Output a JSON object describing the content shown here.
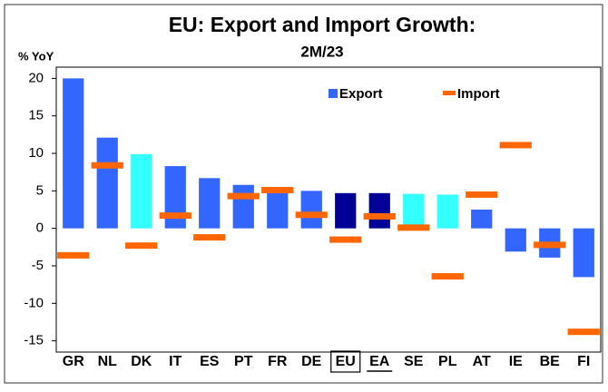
{
  "chart_data": {
    "type": "bar",
    "title": "EU: Export and Import Growth:",
    "subtitle": "2M/23",
    "y_label": "% YoY",
    "categories": [
      "GR",
      "NL",
      "DK",
      "IT",
      "ES",
      "PT",
      "FR",
      "DE",
      "EU",
      "EA",
      "SE",
      "PL",
      "AT",
      "IE",
      "BE",
      "FI"
    ],
    "series": [
      {
        "name": "Export",
        "type": "bar",
        "color": "#3366ff",
        "colors": [
          "#3366ff",
          "#3366ff",
          "#33ffff",
          "#3366ff",
          "#3366ff",
          "#3366ff",
          "#3366ff",
          "#3366ff",
          "#000099",
          "#000099",
          "#33ffff",
          "#33ffff",
          "#3366ff",
          "#3366ff",
          "#3366ff",
          "#3366ff"
        ],
        "values": [
          20,
          12.1,
          9.9,
          8.3,
          6.7,
          5.8,
          5.0,
          5.0,
          4.7,
          4.7,
          4.6,
          4.5,
          2.5,
          -3.1,
          -3.9,
          -6.5
        ]
      },
      {
        "name": "Import",
        "type": "dash",
        "color": "#ff6600",
        "values": [
          -3.6,
          8.4,
          -2.3,
          1.7,
          -1.2,
          4.3,
          5.1,
          1.8,
          -1.5,
          1.6,
          0.1,
          -6.4,
          4.5,
          11.1,
          -2.2,
          -13.8
        ]
      }
    ],
    "ylim": [
      -16.5,
      21.5
    ],
    "yticks": [
      -15,
      -10,
      -5,
      0,
      5,
      10,
      15,
      20
    ],
    "legend": "top-right"
  }
}
